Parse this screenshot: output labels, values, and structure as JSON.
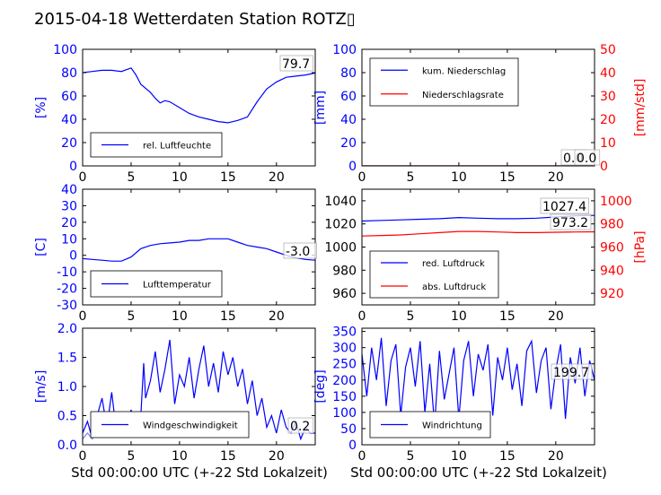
{
  "title": "2015-04-18 Wetterdaten Station ROTZ▯",
  "xlabel": "Std 00:00:00 UTC (+-22 Std Lokalzeit)",
  "x_ticks": [
    0,
    5,
    10,
    15,
    20
  ],
  "colors": {
    "blue": "#0000ff",
    "red": "#ff0000",
    "black": "#000000",
    "lightblue": "#8080ff"
  },
  "chart_data": [
    {
      "id": "humidity",
      "type": "line",
      "title": "",
      "ylabel": "[%]",
      "xlim": [
        0,
        24
      ],
      "ylim": [
        0,
        100
      ],
      "yticks": [
        0,
        20,
        40,
        60,
        80,
        100
      ],
      "last_value_label": "79.7",
      "series": [
        {
          "name": "rel. Luftfeuchte",
          "color": "#0000ff",
          "x": [
            0,
            1,
            2,
            3,
            4,
            5,
            5.5,
            6,
            7,
            7.5,
            8,
            8.5,
            9,
            10,
            11,
            12,
            13,
            14,
            15,
            16,
            17,
            18,
            19,
            20,
            21,
            22,
            23,
            24
          ],
          "y": [
            80,
            81,
            82,
            82,
            81,
            84,
            78,
            70,
            63,
            58,
            54,
            56,
            55,
            50,
            45,
            42,
            40,
            38,
            37,
            39,
            42,
            55,
            66,
            72,
            76,
            77,
            78,
            79.7
          ]
        }
      ]
    },
    {
      "id": "precip",
      "type": "line",
      "title": "",
      "ylabel": "[mm]",
      "ylabel_right": "[mm/std]",
      "xlim": [
        0,
        24
      ],
      "ylim": [
        0,
        100
      ],
      "yticks": [
        0,
        20,
        40,
        60,
        80,
        100
      ],
      "ylim_right": [
        0,
        50
      ],
      "yticks_right": [
        0,
        10,
        20,
        30,
        40,
        50
      ],
      "last_value_labels": [
        "0.0",
        "0.0"
      ],
      "series": [
        {
          "name": "kum. Niederschlag",
          "color": "#0000ff",
          "axis": "left",
          "x": [
            0,
            24
          ],
          "y": [
            0,
            0
          ]
        },
        {
          "name": "Niederschlagsrate",
          "color": "#ff0000",
          "axis": "right",
          "x": [
            0,
            24
          ],
          "y": [
            0,
            0
          ]
        }
      ]
    },
    {
      "id": "temperature",
      "type": "line",
      "title": "",
      "ylabel": "[C]",
      "xlim": [
        0,
        24
      ],
      "ylim": [
        -30,
        40
      ],
      "yticks": [
        -30,
        -20,
        -10,
        0,
        10,
        20,
        30,
        40
      ],
      "last_value_label": "-3.0",
      "series": [
        {
          "name": "Lufttemperatur",
          "color": "#0000ff",
          "x": [
            0,
            1,
            2,
            3,
            4,
            5,
            6,
            7,
            8,
            9,
            10,
            11,
            12,
            13,
            14,
            15,
            16,
            17,
            18,
            19,
            20,
            21,
            22,
            23,
            24
          ],
          "y": [
            -2,
            -2.5,
            -3,
            -3.5,
            -3.5,
            -1,
            4,
            6,
            7,
            7.5,
            8,
            9,
            9,
            10,
            10,
            10,
            8,
            6,
            5,
            4,
            2,
            0,
            -1.5,
            -2.5,
            -3.0
          ]
        }
      ]
    },
    {
      "id": "pressure",
      "type": "line",
      "title": "",
      "ylabel_right": "[hPa]",
      "xlim": [
        0,
        24
      ],
      "ylim": [
        950,
        1050
      ],
      "yticks": [
        960,
        980,
        1000,
        1020,
        1040
      ],
      "ylim_right": [
        910,
        1010
      ],
      "yticks_right": [
        920,
        940,
        960,
        980,
        1000
      ],
      "last_value_labels": [
        "1027.4",
        "973.2"
      ],
      "series": [
        {
          "name": "red. Luftdruck",
          "color": "#0000ff",
          "axis": "left",
          "x": [
            0,
            2,
            4,
            6,
            8,
            10,
            12,
            14,
            16,
            18,
            20,
            22,
            24
          ],
          "y": [
            1022.5,
            1023,
            1023.5,
            1024,
            1024.5,
            1025.5,
            1025,
            1024.5,
            1024.5,
            1025,
            1026,
            1027,
            1027.4
          ]
        },
        {
          "name": "abs. Luftdruck",
          "color": "#ff0000",
          "axis": "right",
          "x": [
            0,
            2,
            4,
            6,
            8,
            10,
            12,
            14,
            16,
            18,
            20,
            22,
            24
          ],
          "y": [
            969.5,
            970,
            970.5,
            971.5,
            972.5,
            973.5,
            973.5,
            973,
            972.5,
            972.5,
            972.8,
            973,
            973.2
          ]
        }
      ]
    },
    {
      "id": "windspeed",
      "type": "line",
      "title": "",
      "ylabel": "[m/s]",
      "xlim": [
        0,
        24
      ],
      "ylim": [
        0,
        2.0
      ],
      "yticks": [
        0.0,
        0.5,
        1.0,
        1.5,
        2.0
      ],
      "last_value_label": "0.2",
      "series": [
        {
          "name": "Windgeschwindigkeit",
          "color": "#0000ff",
          "x": [
            0,
            0.5,
            1,
            1.5,
            2,
            2.5,
            3,
            3.5,
            4,
            4.5,
            5,
            5.5,
            6,
            6.3,
            6.5,
            7,
            7.5,
            8,
            8.5,
            9,
            9.5,
            10,
            10.5,
            11,
            11.5,
            12,
            12.5,
            13,
            13.5,
            14,
            14.5,
            15,
            15.5,
            16,
            16.5,
            17,
            17.5,
            18,
            18.5,
            19,
            19.5,
            20,
            20.5,
            21,
            21.5,
            22,
            22.5,
            23,
            23.5,
            24
          ],
          "y": [
            0.2,
            0.4,
            0.1,
            0.5,
            0.8,
            0.3,
            0.9,
            0.2,
            0.5,
            0.3,
            0.6,
            0.2,
            0.5,
            1.4,
            0.8,
            1.1,
            1.6,
            0.9,
            1.3,
            1.8,
            0.7,
            1.2,
            1.0,
            1.5,
            0.8,
            1.3,
            1.7,
            1.0,
            1.4,
            0.9,
            1.6,
            1.2,
            1.5,
            1.0,
            1.3,
            0.7,
            1.1,
            0.5,
            0.8,
            0.3,
            0.5,
            0.2,
            0.6,
            0.3,
            0.2,
            0.4,
            0.1,
            0.3,
            0.2,
            0.2
          ]
        },
        {
          "name": "",
          "color": "#8080ff",
          "x": [
            0,
            0.5,
            1,
            1.5,
            2,
            2.5,
            3,
            3.5,
            4,
            4.5,
            5,
            5.5,
            6
          ],
          "y": [
            0.1,
            0.2,
            0.1,
            0.3,
            0.4,
            0.2,
            0.5,
            0.3,
            0.4,
            0.2,
            0.3,
            0.2,
            0.4
          ]
        }
      ]
    },
    {
      "id": "winddir",
      "type": "line",
      "title": "",
      "ylabel": "[deg]",
      "xlim": [
        0,
        24
      ],
      "ylim": [
        0,
        360
      ],
      "yticks": [
        0,
        50,
        100,
        150,
        200,
        250,
        300,
        350
      ],
      "last_value_label": "199.7",
      "series": [
        {
          "name": "Windrichtung",
          "color": "#0000ff",
          "x": [
            0,
            0.5,
            1,
            1.5,
            2,
            2.5,
            3,
            3.5,
            4,
            4.5,
            5,
            5.5,
            6,
            6.5,
            7,
            7.5,
            8,
            8.5,
            9,
            9.5,
            10,
            10.5,
            11,
            11.5,
            12,
            12.5,
            13,
            13.5,
            14,
            14.5,
            15,
            15.5,
            16,
            16.5,
            17,
            17.5,
            18,
            18.5,
            19,
            19.5,
            20,
            20.5,
            21,
            21.5,
            22,
            22.5,
            23,
            23.5,
            24
          ],
          "y": [
            280,
            150,
            300,
            200,
            330,
            120,
            260,
            310,
            90,
            240,
            300,
            180,
            320,
            100,
            250,
            60,
            290,
            140,
            220,
            300,
            80,
            260,
            320,
            150,
            280,
            230,
            310,
            90,
            270,
            200,
            300,
            170,
            250,
            120,
            290,
            320,
            160,
            260,
            300,
            110,
            230,
            310,
            80,
            270,
            190,
            300,
            150,
            260,
            199.7
          ]
        }
      ]
    }
  ]
}
